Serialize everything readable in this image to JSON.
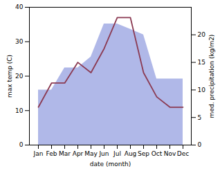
{
  "chart_data": {
    "type": "line",
    "xlabel": "date (month)",
    "ylabel": "max temp (C)",
    "y2label": "med. precipitation (kg/m2)",
    "categories": [
      "Jan",
      "Feb",
      "Mar",
      "Apr",
      "May",
      "Jun",
      "Jul",
      "Aug",
      "Sep",
      "Oct",
      "Nov",
      "Dec"
    ],
    "series": [
      {
        "type": "area",
        "axis": "y2",
        "color": "#b0b8e8",
        "values": [
          10,
          10,
          14,
          14,
          16,
          22,
          22,
          21,
          20,
          12,
          12,
          12
        ]
      },
      {
        "type": "line",
        "color": "#8B3A52",
        "values": [
          11,
          18,
          18,
          24,
          21,
          28,
          37,
          37,
          21,
          14,
          11,
          11
        ]
      }
    ],
    "ylim": [
      0,
      40
    ],
    "yticks": [
      0,
      10,
      20,
      30,
      40
    ],
    "y2lim": [
      0,
      25
    ],
    "y2ticks": [
      0,
      5,
      10,
      15,
      20
    ]
  }
}
